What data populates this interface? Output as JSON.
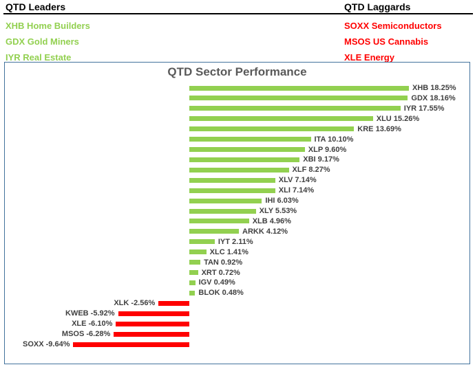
{
  "header": {
    "leaders": {
      "title": "QTD Leaders",
      "items": [
        "XHB Home Builders",
        "GDX Gold Miners",
        "IYR Real Estate"
      ]
    },
    "laggards": {
      "title": "QTD Laggards",
      "items": [
        "SOXX Semiconductors",
        "MSOS US Cannabis",
        "XLE Energy"
      ]
    }
  },
  "colors": {
    "positive_bar": "#92D050",
    "negative_bar": "#FF0000",
    "leaders_text": "#92D050",
    "laggards_text": "#FF0000",
    "chart_border": "#41719C",
    "title_text": "#595959",
    "bar_label_text": "#404040",
    "header_rule": "#000000"
  },
  "chart_data": {
    "type": "bar",
    "orientation": "horizontal",
    "title": "QTD Sector Performance",
    "xlabel": "",
    "ylabel": "",
    "value_axis_visible": false,
    "grid": false,
    "legend": false,
    "xlim": [
      -15.5,
      23.5
    ],
    "categories": [
      "XHB",
      "GDX",
      "IYR",
      "XLU",
      "KRE",
      "ITA",
      "XLP",
      "XBI",
      "XLF",
      "XLV",
      "XLI",
      "IHI",
      "XLY",
      "XLB",
      "ARKK",
      "IYT",
      "XLC",
      "TAN",
      "XRT",
      "IGV",
      "BLOK",
      "XLK",
      "KWEB",
      "XLE",
      "MSOS",
      "SOXX"
    ],
    "values": [
      18.25,
      18.16,
      17.55,
      15.26,
      13.69,
      10.1,
      9.6,
      9.17,
      8.27,
      7.14,
      7.14,
      6.03,
      5.53,
      4.96,
      4.12,
      2.11,
      1.41,
      0.92,
      0.72,
      0.49,
      0.48,
      -2.56,
      -5.92,
      -6.1,
      -6.28,
      -9.64
    ],
    "labels": [
      "XHB 18.25%",
      "GDX 18.16%",
      "IYR 17.55%",
      "XLU 15.26%",
      "KRE 13.69%",
      "ITA 10.10%",
      "XLP 9.60%",
      "XBI 9.17%",
      "XLF 8.27%",
      "XLV 7.14%",
      "XLI 7.14%",
      "IHI 6.03%",
      "XLY 5.53%",
      "XLB 4.96%",
      "ARKK 4.12%",
      "IYT 2.11%",
      "XLC 1.41%",
      "TAN 0.92%",
      "XRT 0.72%",
      "IGV 0.49%",
      "BLOK 0.48%",
      "XLK -2.56%",
      "KWEB -5.92%",
      "XLE -6.10%",
      "MSOS -6.28%",
      "SOXX -9.64%"
    ]
  }
}
